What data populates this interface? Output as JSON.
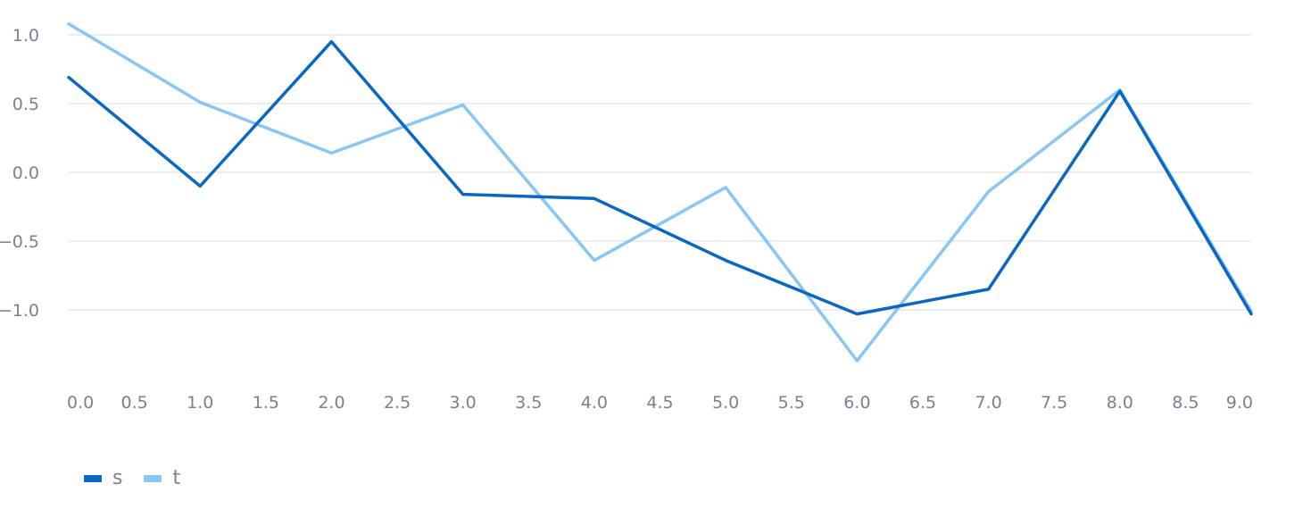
{
  "chart_data": {
    "type": "line",
    "title": "",
    "xlabel": "",
    "ylabel": "",
    "x": [
      0,
      1,
      2,
      3,
      4,
      5,
      6,
      7,
      8,
      9
    ],
    "xlim": [
      0,
      9
    ],
    "ylim": [
      -1.5,
      1.1
    ],
    "grid": true,
    "legend_position": "bottom-left",
    "x_ticks": [
      0,
      0.5,
      1,
      1.5,
      2,
      2.5,
      3,
      3.5,
      4,
      4.5,
      5,
      5.5,
      6,
      6.5,
      7,
      7.5,
      8,
      8.5,
      9
    ],
    "x_tick_labels": [
      "0.0",
      "0.5",
      "1.0",
      "1.5",
      "2.0",
      "2.5",
      "3.0",
      "3.5",
      "4.0",
      "4.5",
      "5.0",
      "5.5",
      "6.0",
      "6.5",
      "7.0",
      "7.5",
      "8.0",
      "8.5",
      "9.0"
    ],
    "y_ticks": [
      1.0,
      0.5,
      0.0,
      -0.5,
      -1.0
    ],
    "y_tick_labels": [
      "1.0",
      "0.5",
      "0.0",
      "−0.5",
      "−1.0"
    ],
    "series": [
      {
        "name": "s",
        "color": "#0a67c4",
        "values": [
          0.69,
          -0.1,
          0.95,
          -0.16,
          -0.19,
          -0.64,
          -1.03,
          -0.85,
          0.59,
          -1.03
        ]
      },
      {
        "name": "t",
        "color": "#87c6f5",
        "values": [
          1.08,
          0.51,
          0.14,
          0.49,
          -0.64,
          -0.11,
          -1.37,
          -0.14,
          0.6,
          -1.01
        ]
      }
    ]
  }
}
